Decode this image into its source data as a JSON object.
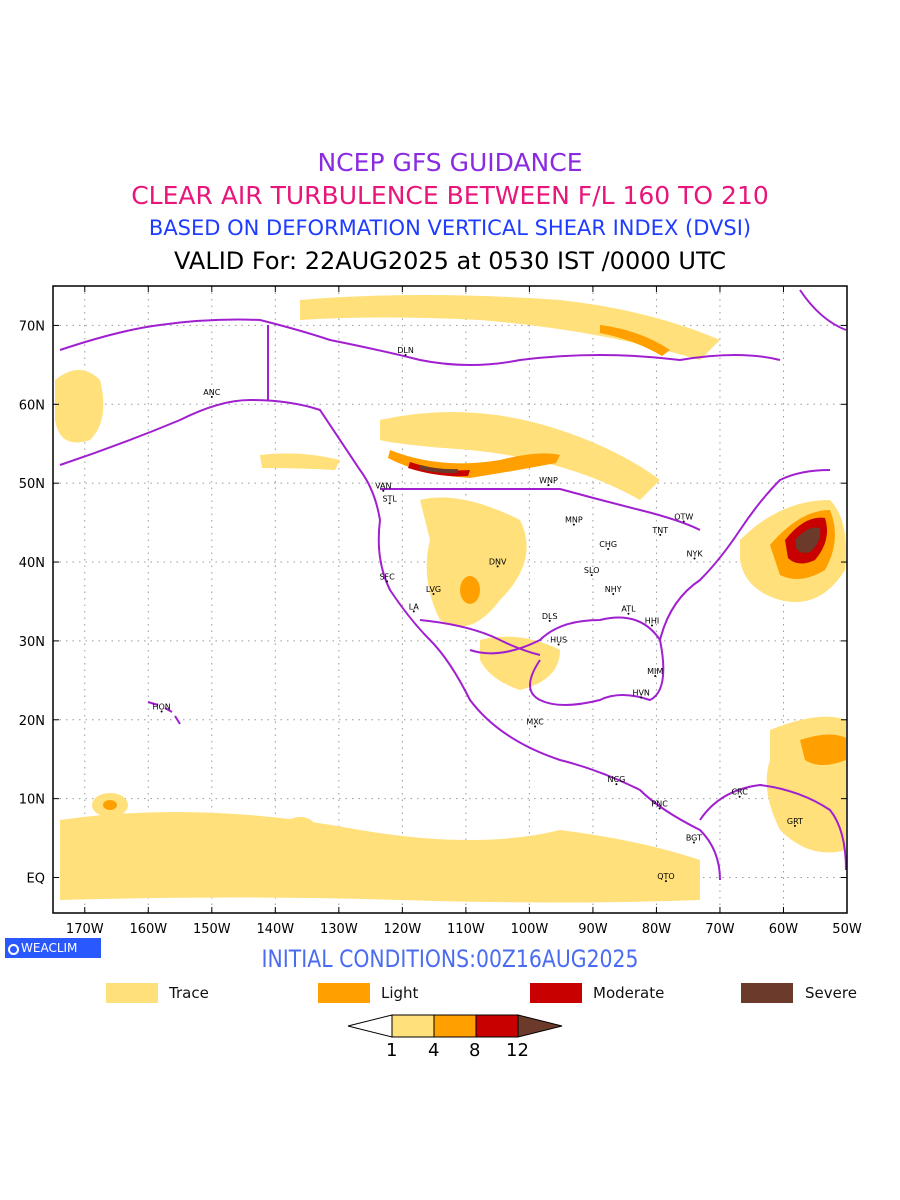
{
  "titles": {
    "line1": "NCEP GFS GUIDANCE",
    "line2": "CLEAR AIR TURBULENCE BETWEEN F/L 160 TO 210",
    "line3": "BASED ON DEFORMATION VERTICAL SHEAR INDEX (DVSI)",
    "line4": "VALID For: 22AUG2025 at 0530 IST /0000 UTC"
  },
  "colors": {
    "line1": "#8a2be2",
    "line2": "#e8157a",
    "line3": "#1e3cff",
    "line4": "#000000",
    "init": "#4b6cf0",
    "coast": "#a020d0",
    "trace": "#ffe07a",
    "light": "#ffa000",
    "moderate": "#c80000",
    "severe": "#6b3a2a"
  },
  "lat_labels": [
    "70N",
    "60N",
    "50N",
    "40N",
    "30N",
    "20N",
    "10N",
    "EQ"
  ],
  "lon_labels": [
    "170W",
    "160W",
    "150W",
    "140W",
    "130W",
    "120W",
    "110W",
    "100W",
    "90W",
    "80W",
    "70W",
    "60W",
    "50W"
  ],
  "cities": [
    {
      "name": "ANC",
      "lon": -150,
      "lat": 61.2
    },
    {
      "name": "DLN",
      "lon": -119.5,
      "lat": 66.5
    },
    {
      "name": "VAN",
      "lon": -123,
      "lat": 49.3
    },
    {
      "name": "STL",
      "lon": -122,
      "lat": 47.7
    },
    {
      "name": "WNP",
      "lon": -97,
      "lat": 50
    },
    {
      "name": "MNP",
      "lon": -93,
      "lat": 45
    },
    {
      "name": "OTW",
      "lon": -75.7,
      "lat": 45.4
    },
    {
      "name": "TNT",
      "lon": -79.4,
      "lat": 43.7
    },
    {
      "name": "CHG",
      "lon": -87.6,
      "lat": 41.9
    },
    {
      "name": "NYK",
      "lon": -74,
      "lat": 40.7
    },
    {
      "name": "DNV",
      "lon": -105,
      "lat": 39.7
    },
    {
      "name": "SFC",
      "lon": -122.4,
      "lat": 37.8
    },
    {
      "name": "LVG",
      "lon": -115.1,
      "lat": 36.2
    },
    {
      "name": "SLO",
      "lon": -90.2,
      "lat": 38.6
    },
    {
      "name": "NHY",
      "lon": -86.8,
      "lat": 36.2
    },
    {
      "name": "LA",
      "lon": -118.2,
      "lat": 34
    },
    {
      "name": "ATL",
      "lon": -84.4,
      "lat": 33.7
    },
    {
      "name": "DLS",
      "lon": -96.8,
      "lat": 32.8
    },
    {
      "name": "HHI",
      "lon": -80.7,
      "lat": 32.2
    },
    {
      "name": "HUS",
      "lon": -95.4,
      "lat": 29.8
    },
    {
      "name": "MIM",
      "lon": -80.2,
      "lat": 25.8
    },
    {
      "name": "HVN",
      "lon": -82.4,
      "lat": 23.1
    },
    {
      "name": "HON",
      "lon": -157.9,
      "lat": 21.3
    },
    {
      "name": "MXC",
      "lon": -99.1,
      "lat": 19.4
    },
    {
      "name": "NCG",
      "lon": -86.3,
      "lat": 12.1
    },
    {
      "name": "CRC",
      "lon": -66.9,
      "lat": 10.5
    },
    {
      "name": "PNC",
      "lon": -79.5,
      "lat": 9
    },
    {
      "name": "GRT",
      "lon": -58.2,
      "lat": 6.8
    },
    {
      "name": "BGT",
      "lon": -74.1,
      "lat": 4.7
    },
    {
      "name": "QTO",
      "lon": -78.5,
      "lat": -0.2
    }
  ],
  "brand": "WEACLIM",
  "init_text": "INITIAL CONDITIONS:00Z16AUG2025",
  "legend": [
    {
      "label": "Trace"
    },
    {
      "label": "Light"
    },
    {
      "label": "Moderate"
    },
    {
      "label": "Severe"
    }
  ],
  "colorbar": {
    "ticks": [
      "1",
      "4",
      "8",
      "12"
    ]
  }
}
